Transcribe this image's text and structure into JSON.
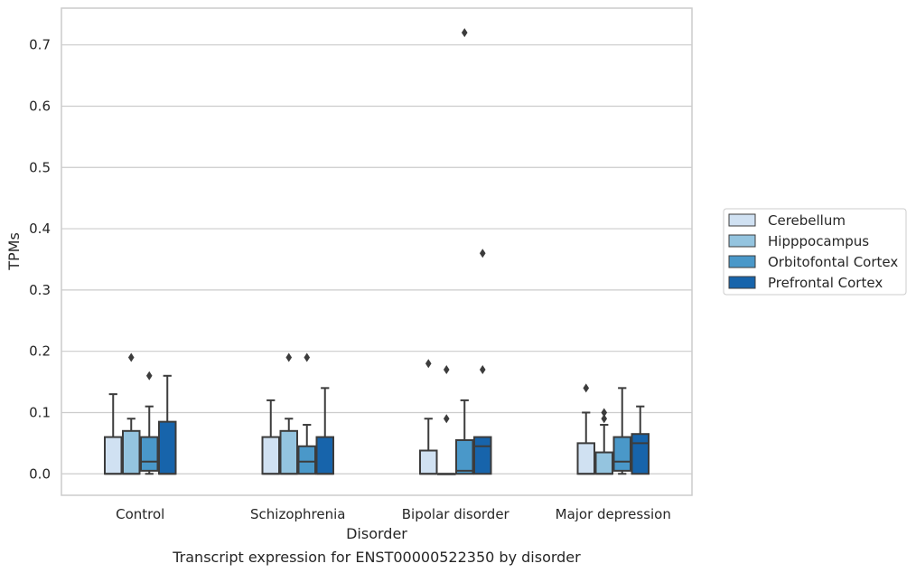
{
  "chart_data": {
    "type": "box",
    "title": "",
    "xlabel": "Disorder",
    "ylabel": "TPMs",
    "caption": "Transcript expression for ENST00000522350 by disorder",
    "ylim": [
      -0.035,
      0.76
    ],
    "yticks": [
      0.0,
      0.1,
      0.2,
      0.3,
      0.4,
      0.5,
      0.6,
      0.7
    ],
    "ytick_labels": [
      "0.0",
      "0.1",
      "0.2",
      "0.3",
      "0.4",
      "0.5",
      "0.6",
      "0.7"
    ],
    "grid": "horizontal",
    "legend_position": "right",
    "categories": [
      "Control",
      "Schizophrenia",
      "Bipolar disorder",
      "Major depression"
    ],
    "series": [
      {
        "name": "Cerebellum",
        "color": "#d0e1f2",
        "boxes": [
          {
            "whislo": 0.0,
            "q1": 0.0,
            "med": 0.0,
            "q3": 0.06,
            "whishi": 0.13,
            "fliers": []
          },
          {
            "whislo": 0.0,
            "q1": 0.0,
            "med": 0.0,
            "q3": 0.06,
            "whishi": 0.12,
            "fliers": []
          },
          {
            "whislo": 0.0,
            "q1": 0.0,
            "med": 0.0,
            "q3": 0.038,
            "whishi": 0.09,
            "fliers": [
              0.18
            ]
          },
          {
            "whislo": 0.0,
            "q1": 0.0,
            "med": 0.0,
            "q3": 0.05,
            "whishi": 0.1,
            "fliers": [
              0.14
            ]
          }
        ]
      },
      {
        "name": "Hipppocampus",
        "color": "#94c4df",
        "boxes": [
          {
            "whislo": 0.0,
            "q1": 0.0,
            "med": 0.0,
            "q3": 0.07,
            "whishi": 0.09,
            "fliers": [
              0.19
            ]
          },
          {
            "whislo": 0.0,
            "q1": 0.0,
            "med": 0.0,
            "q3": 0.07,
            "whishi": 0.09,
            "fliers": [
              0.19
            ]
          },
          {
            "whislo": 0.0,
            "q1": 0.0,
            "med": 0.0,
            "q3": 0.0,
            "whishi": 0.0,
            "fliers": [
              0.17,
              0.09
            ]
          },
          {
            "whislo": 0.0,
            "q1": 0.0,
            "med": 0.0,
            "q3": 0.035,
            "whishi": 0.08,
            "fliers": [
              0.1,
              0.09
            ]
          }
        ]
      },
      {
        "name": "Orbitofontal Cortex",
        "color": "#4a98c9",
        "boxes": [
          {
            "whislo": 0.0,
            "q1": 0.005,
            "med": 0.02,
            "q3": 0.06,
            "whishi": 0.11,
            "fliers": [
              0.16
            ]
          },
          {
            "whislo": 0.0,
            "q1": 0.0,
            "med": 0.02,
            "q3": 0.045,
            "whishi": 0.08,
            "fliers": [
              0.19
            ]
          },
          {
            "whislo": 0.0,
            "q1": 0.0,
            "med": 0.005,
            "q3": 0.055,
            "whishi": 0.12,
            "fliers": [
              0.72
            ]
          },
          {
            "whislo": 0.0,
            "q1": 0.005,
            "med": 0.02,
            "q3": 0.06,
            "whishi": 0.14,
            "fliers": []
          }
        ]
      },
      {
        "name": "Prefrontal Cortex",
        "color": "#1764ab",
        "boxes": [
          {
            "whislo": 0.0,
            "q1": 0.0,
            "med": 0.0,
            "q3": 0.085,
            "whishi": 0.16,
            "fliers": []
          },
          {
            "whislo": 0.0,
            "q1": 0.0,
            "med": 0.0,
            "q3": 0.06,
            "whishi": 0.14,
            "fliers": []
          },
          {
            "whislo": 0.0,
            "q1": 0.0,
            "med": 0.045,
            "q3": 0.06,
            "whishi": 0.06,
            "fliers": [
              0.36,
              0.17
            ]
          },
          {
            "whislo": 0.0,
            "q1": 0.0,
            "med": 0.05,
            "q3": 0.065,
            "whishi": 0.11,
            "fliers": []
          }
        ]
      }
    ]
  }
}
